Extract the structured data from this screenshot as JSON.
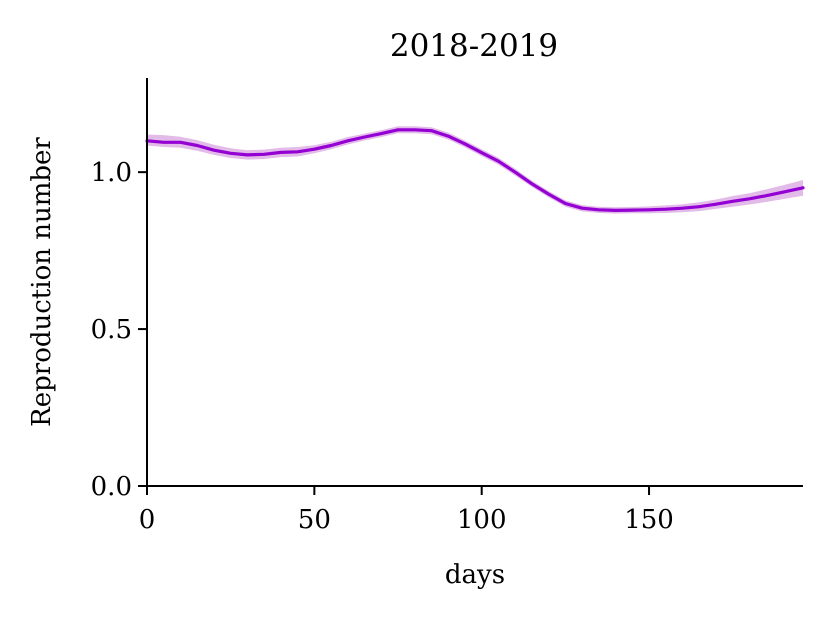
{
  "chart_data": {
    "type": "line",
    "title": "2018-2019",
    "xlabel": "days",
    "ylabel": "Reproduction number",
    "xlim": [
      0,
      196
    ],
    "ylim": [
      0,
      1.3
    ],
    "x_ticks": [
      0,
      50,
      100,
      150
    ],
    "x_tick_labels": [
      "0",
      "50",
      "100",
      "150"
    ],
    "y_ticks": [
      0.0,
      0.5,
      1.0
    ],
    "y_tick_labels": [
      "0.0",
      "0.5",
      "1.0"
    ],
    "grid": false,
    "legend": "none",
    "line_color": "#9400d3",
    "band_color": "#e3bbe8",
    "series": [
      {
        "x": [
          0,
          5,
          10,
          15,
          20,
          25,
          30,
          35,
          40,
          45,
          50,
          55,
          60,
          65,
          70,
          75,
          80,
          85,
          90,
          95,
          100,
          105,
          110,
          115,
          120,
          125,
          130,
          135,
          140,
          145,
          150,
          155,
          160,
          165,
          170,
          175,
          180,
          185,
          190,
          196
        ],
        "values": [
          1.1,
          1.095,
          1.095,
          1.085,
          1.07,
          1.06,
          1.055,
          1.057,
          1.063,
          1.065,
          1.073,
          1.085,
          1.1,
          1.112,
          1.123,
          1.135,
          1.135,
          1.132,
          1.115,
          1.09,
          1.062,
          1.035,
          1.0,
          0.963,
          0.93,
          0.9,
          0.885,
          0.88,
          0.878,
          0.879,
          0.88,
          0.882,
          0.885,
          0.89,
          0.898,
          0.907,
          0.915,
          0.925,
          0.936,
          0.95
        ],
        "lower": [
          1.085,
          1.08,
          1.078,
          1.068,
          1.055,
          1.045,
          1.04,
          1.042,
          1.048,
          1.05,
          1.06,
          1.073,
          1.088,
          1.101,
          1.112,
          1.124,
          1.124,
          1.121,
          1.104,
          1.079,
          1.051,
          1.024,
          0.989,
          0.953,
          0.92,
          0.89,
          0.875,
          0.87,
          0.868,
          0.869,
          0.869,
          0.87,
          0.872,
          0.876,
          0.883,
          0.89,
          0.897,
          0.905,
          0.914,
          0.925
        ],
        "upper": [
          1.12,
          1.118,
          1.113,
          1.102,
          1.087,
          1.076,
          1.07,
          1.072,
          1.078,
          1.08,
          1.086,
          1.097,
          1.112,
          1.123,
          1.134,
          1.146,
          1.146,
          1.143,
          1.126,
          1.101,
          1.073,
          1.046,
          1.011,
          0.973,
          0.94,
          0.91,
          0.895,
          0.89,
          0.888,
          0.889,
          0.891,
          0.894,
          0.898,
          0.904,
          0.913,
          0.924,
          0.933,
          0.945,
          0.958,
          0.975
        ]
      }
    ]
  }
}
